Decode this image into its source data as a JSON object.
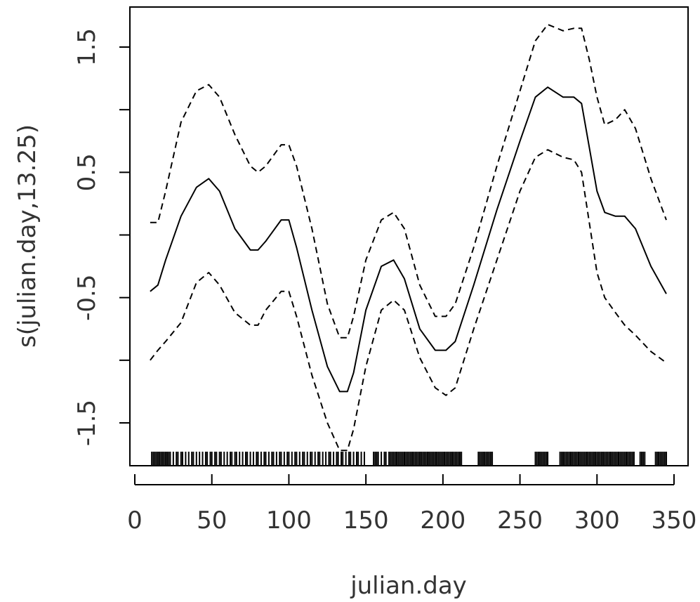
{
  "chart_data": {
    "type": "line",
    "xlabel": "julian.day",
    "ylabel": "s(julian.day,13.25)",
    "xlim": [
      0,
      360
    ],
    "ylim": [
      -1.85,
      1.85
    ],
    "x_ticks": [
      0,
      50,
      100,
      150,
      200,
      250,
      300,
      350
    ],
    "x_tick_labels": [
      "0",
      "50",
      "100",
      "150",
      "200",
      "250",
      "300",
      "350"
    ],
    "y_ticks": [
      -1.5,
      -1.0,
      -0.5,
      0.0,
      0.5,
      1.0,
      1.5
    ],
    "y_tick_labels": [
      "-1.5",
      "",
      "-0.5",
      "",
      "0.5",
      "",
      "1.5"
    ],
    "grid": false,
    "series": [
      {
        "line_style": "solid",
        "x": [
          10,
          15,
          20,
          30,
          40,
          48,
          55,
          65,
          75,
          80,
          85,
          95,
          100,
          105,
          115,
          125,
          133,
          138,
          142,
          150,
          160,
          168,
          175,
          185,
          195,
          202,
          208,
          220,
          235,
          250,
          260,
          268,
          278,
          285,
          290,
          295,
          300,
          305,
          312,
          318,
          325,
          335,
          345
        ],
        "y": [
          -0.45,
          -0.4,
          -0.2,
          0.15,
          0.38,
          0.45,
          0.35,
          0.05,
          -0.12,
          -0.12,
          -0.05,
          0.12,
          0.12,
          -0.1,
          -0.6,
          -1.05,
          -1.25,
          -1.25,
          -1.1,
          -0.6,
          -0.25,
          -0.2,
          -0.35,
          -0.75,
          -0.92,
          -0.92,
          -0.85,
          -0.4,
          0.2,
          0.75,
          1.1,
          1.18,
          1.1,
          1.1,
          1.05,
          0.7,
          0.35,
          0.18,
          0.15,
          0.15,
          0.05,
          -0.25,
          -0.47
        ]
      },
      {
        "line_style": "dashed",
        "x": [
          10,
          15,
          20,
          30,
          40,
          48,
          55,
          65,
          75,
          80,
          85,
          95,
          100,
          105,
          115,
          125,
          133,
          138,
          142,
          150,
          160,
          168,
          175,
          185,
          195,
          202,
          208,
          220,
          235,
          250,
          260,
          268,
          278,
          285,
          290,
          295,
          300,
          305,
          312,
          318,
          325,
          335,
          345
        ],
        "y": [
          0.1,
          0.1,
          0.35,
          0.9,
          1.15,
          1.2,
          1.1,
          0.8,
          0.55,
          0.5,
          0.55,
          0.72,
          0.72,
          0.55,
          0.05,
          -0.55,
          -0.82,
          -0.82,
          -0.65,
          -0.2,
          0.12,
          0.18,
          0.05,
          -0.4,
          -0.65,
          -0.65,
          -0.55,
          -0.1,
          0.55,
          1.15,
          1.55,
          1.68,
          1.63,
          1.65,
          1.65,
          1.4,
          1.1,
          0.88,
          0.92,
          1.0,
          0.85,
          0.45,
          0.12
        ]
      },
      {
        "line_style": "dashed",
        "x": [
          10,
          15,
          20,
          30,
          40,
          48,
          55,
          65,
          75,
          80,
          85,
          95,
          100,
          105,
          115,
          125,
          133,
          138,
          142,
          150,
          160,
          168,
          175,
          185,
          195,
          202,
          208,
          220,
          235,
          250,
          260,
          268,
          278,
          285,
          290,
          295,
          300,
          305,
          312,
          318,
          325,
          335,
          345
        ],
        "y": [
          -1.0,
          -0.92,
          -0.85,
          -0.7,
          -0.38,
          -0.3,
          -0.4,
          -0.62,
          -0.72,
          -0.72,
          -0.6,
          -0.45,
          -0.45,
          -0.65,
          -1.12,
          -1.5,
          -1.72,
          -1.72,
          -1.55,
          -1.05,
          -0.6,
          -0.52,
          -0.6,
          -0.98,
          -1.22,
          -1.28,
          -1.22,
          -0.75,
          -0.2,
          0.35,
          0.62,
          0.68,
          0.62,
          0.6,
          0.5,
          0.1,
          -0.3,
          -0.5,
          -0.62,
          -0.72,
          -0.8,
          -0.93,
          -1.02
        ]
      }
    ],
    "rug": [
      11,
      12,
      13,
      14,
      15,
      16,
      17,
      18,
      19,
      20,
      21,
      22,
      23,
      25,
      27,
      28,
      30,
      31,
      33,
      35,
      37,
      38,
      40,
      42,
      44,
      46,
      47,
      49,
      50,
      52,
      53,
      55,
      56,
      58,
      60,
      62,
      63,
      65,
      66,
      68,
      70,
      72,
      73,
      75,
      77,
      79,
      80,
      82,
      84,
      85,
      87,
      89,
      90,
      92,
      94,
      95,
      97,
      99,
      100,
      102,
      104,
      105,
      107,
      109,
      110,
      112,
      114,
      115,
      117,
      119,
      120,
      122,
      124,
      126,
      127,
      129,
      131,
      132,
      134,
      135,
      137,
      139,
      140,
      142,
      144,
      145,
      147,
      149,
      155,
      156,
      157,
      158,
      160,
      162,
      163,
      165,
      166,
      167,
      168,
      169,
      170,
      171,
      172,
      173,
      174,
      175,
      176,
      177,
      178,
      179,
      180,
      181,
      182,
      183,
      184,
      185,
      186,
      187,
      188,
      189,
      190,
      191,
      192,
      193,
      194,
      195,
      196,
      197,
      198,
      199,
      200,
      201,
      202,
      203,
      204,
      205,
      206,
      207,
      208,
      209,
      210,
      211,
      212,
      223,
      224,
      225,
      226,
      227,
      228,
      229,
      230,
      231,
      232,
      260,
      261,
      262,
      263,
      264,
      265,
      266,
      267,
      268,
      276,
      277,
      278,
      279,
      280,
      281,
      282,
      283,
      284,
      285,
      286,
      287,
      288,
      289,
      290,
      291,
      292,
      293,
      294,
      295,
      296,
      297,
      298,
      299,
      300,
      301,
      302,
      303,
      304,
      305,
      306,
      307,
      308,
      309,
      310,
      311,
      312,
      313,
      314,
      315,
      316,
      317,
      318,
      319,
      320,
      321,
      322,
      323,
      324,
      328,
      329,
      330,
      331,
      338,
      339,
      340,
      341,
      342,
      343,
      344,
      345
    ]
  }
}
